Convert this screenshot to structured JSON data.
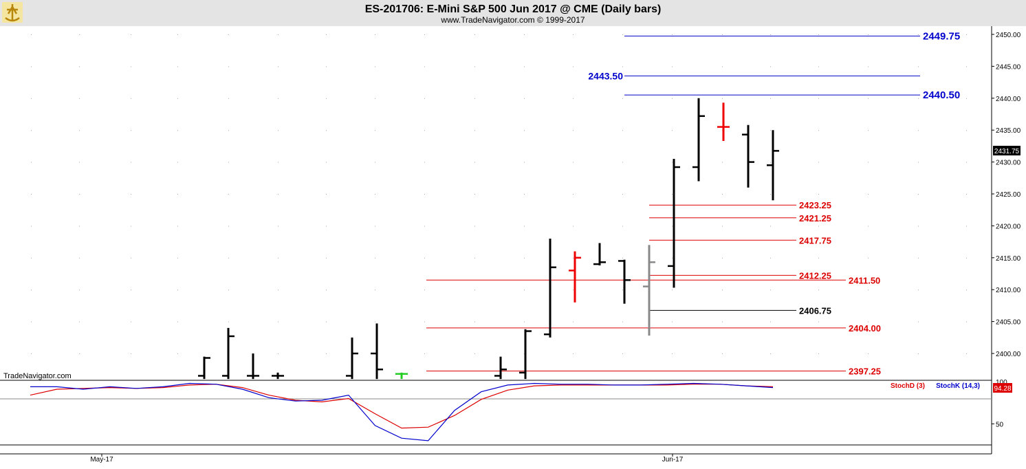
{
  "header": {
    "title": "ES-201706:  E-Mini S&P 500 Jun 2017 @ CME  (Daily bars)",
    "subtitle": "www.TradeNavigator.com © 1999-2017",
    "watermark": "TradeNavigator.com"
  },
  "colors": {
    "bar": "#000000",
    "bar_red": "#ee0000",
    "bar_gray": "#888888",
    "bar_green": "#22cc22",
    "level_red": "#dd0000",
    "level_blue": "#0000cc",
    "level_black": "#000000",
    "stochD": "#dd0000",
    "stochK": "#0000cc",
    "grid_dot": "#aaaaaa"
  },
  "chart_data": [
    {
      "type": "ohlc",
      "title": "ES-201706:  E-Mini S&P 500 Jun 2017 @ CME  (Daily bars)",
      "ylim": [
        2396,
        2452
      ],
      "y_ticks": [
        "2400.00",
        "2405.00",
        "2410.00",
        "2415.00",
        "2420.00",
        "2425.00",
        "2430.00",
        "2435.00",
        "2440.00",
        "2445.00",
        "2450.00"
      ],
      "last_price": "2431.75",
      "x_labels": [
        "May-17",
        "Jun-17"
      ],
      "bars": [
        {
          "o": 2396.5,
          "h": 2399.5,
          "l": 2396.0,
          "c": 2399.3,
          "color": "black"
        },
        {
          "o": 2396.5,
          "h": 2404.0,
          "l": 2396.0,
          "c": 2402.7,
          "color": "black"
        },
        {
          "o": 2396.5,
          "h": 2400.0,
          "l": 2396.0,
          "c": 2396.5,
          "color": "black"
        },
        {
          "o": 2396.5,
          "h": 2397.0,
          "l": 2396.0,
          "c": 2396.5,
          "color": "black"
        },
        {
          "o": 2396.5,
          "h": 2402.5,
          "l": 2396.0,
          "c": 2400.0,
          "color": "black"
        },
        {
          "o": 2400.0,
          "h": 2404.7,
          "l": 2396.0,
          "c": 2397.5,
          "color": "black"
        },
        {
          "o": 2396.8,
          "h": 2397.0,
          "l": 2396.0,
          "c": 2396.8,
          "color": "green"
        },
        {
          "o": 2396.5,
          "h": 2399.5,
          "l": 2396.0,
          "c": 2397.5,
          "color": "black"
        },
        {
          "o": 2397.0,
          "h": 2403.8,
          "l": 2396.0,
          "c": 2403.5,
          "color": "black"
        },
        {
          "o": 2403.0,
          "h": 2418.0,
          "l": 2402.5,
          "c": 2413.5,
          "color": "black"
        },
        {
          "o": 2413.0,
          "h": 2416.0,
          "l": 2408.0,
          "c": 2415.0,
          "color": "red"
        },
        {
          "o": 2414.0,
          "h": 2417.3,
          "l": 2413.8,
          "c": 2414.3,
          "color": "black"
        },
        {
          "o": 2414.5,
          "h": 2414.7,
          "l": 2407.8,
          "c": 2411.5,
          "color": "black"
        },
        {
          "o": 2410.5,
          "h": 2417.0,
          "l": 2402.8,
          "c": 2414.3,
          "color": "gray"
        },
        {
          "o": 2413.7,
          "h": 2430.5,
          "l": 2410.3,
          "c": 2429.2,
          "color": "black"
        },
        {
          "o": 2429.2,
          "h": 2440.0,
          "l": 2427.0,
          "c": 2437.2,
          "color": "black"
        },
        {
          "o": 2435.5,
          "h": 2439.3,
          "l": 2433.3,
          "c": 2435.5,
          "color": "red"
        },
        {
          "o": 2434.3,
          "h": 2435.8,
          "l": 2426.0,
          "c": 2430.0,
          "color": "black"
        },
        {
          "o": 2429.5,
          "h": 2435.0,
          "l": 2424.0,
          "c": 2431.75,
          "color": "black"
        }
      ],
      "levels": [
        {
          "label": "2449.75",
          "value": 2449.75,
          "color": "blue",
          "label_side": "right"
        },
        {
          "label": "2443.50",
          "value": 2443.5,
          "color": "blue",
          "label_side": "left"
        },
        {
          "label": "2440.50",
          "value": 2440.5,
          "color": "blue",
          "label_side": "right"
        },
        {
          "label": "2423.25",
          "value": 2423.25,
          "color": "red",
          "label_side": "right"
        },
        {
          "label": "2421.25",
          "value": 2421.25,
          "color": "red",
          "label_side": "right"
        },
        {
          "label": "2417.75",
          "value": 2417.75,
          "color": "red",
          "label_side": "right"
        },
        {
          "label": "2412.25",
          "value": 2412.25,
          "color": "red",
          "label_side": "right"
        },
        {
          "label": "2411.50",
          "value": 2411.5,
          "color": "red",
          "label_side": "right"
        },
        {
          "label": "2406.75",
          "value": 2406.75,
          "color": "black",
          "label_side": "right"
        },
        {
          "label": "2404.00",
          "value": 2404.0,
          "color": "red",
          "label_side": "right"
        },
        {
          "label": "2397.25",
          "value": 2397.25,
          "color": "red",
          "label_side": "right"
        }
      ]
    },
    {
      "type": "line",
      "ylim": [
        25,
        100
      ],
      "y_ticks": [
        "50"
      ],
      "top_tick": "100",
      "last_value": "94.28",
      "series": [
        {
          "name": "StochD (3)",
          "color": "red",
          "values": [
            84,
            91,
            92,
            93,
            92,
            93,
            96,
            97,
            93,
            84,
            78,
            76,
            80,
            62,
            45,
            46,
            60,
            79,
            90,
            95,
            96,
            96,
            96,
            96,
            96,
            97,
            97,
            95,
            94
          ]
        },
        {
          "name": "StochK (14,3)",
          "color": "blue",
          "values": [
            94,
            94,
            91,
            94,
            92,
            94,
            98,
            97,
            91,
            81,
            77,
            78,
            84,
            48,
            33,
            30,
            66,
            88,
            96,
            98,
            97,
            97,
            96,
            96,
            97,
            98,
            97,
            95,
            93
          ]
        }
      ]
    }
  ]
}
